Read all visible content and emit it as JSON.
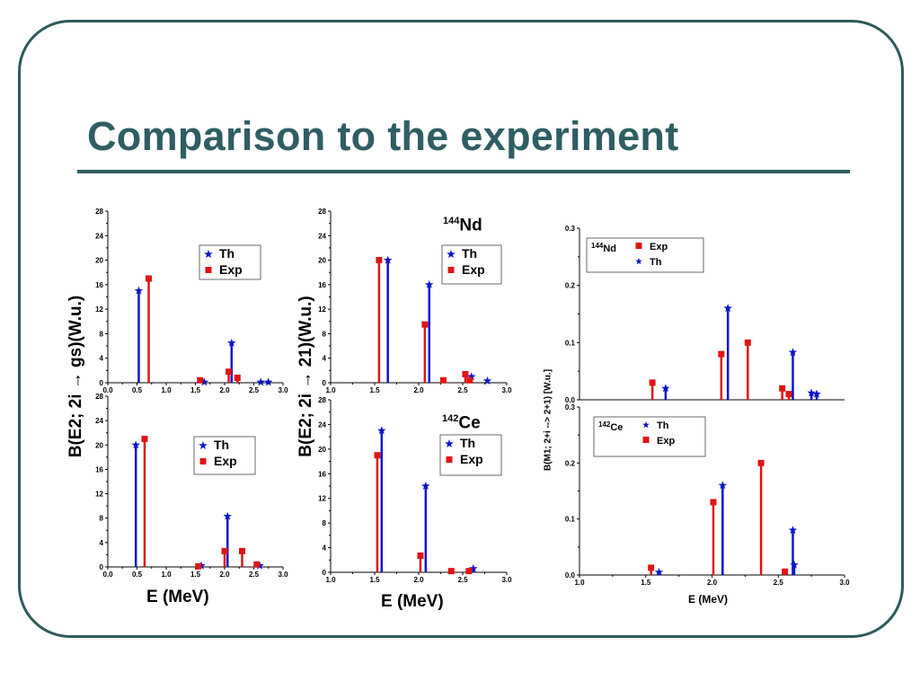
{
  "slide": {
    "title": "Comparison to the experiment",
    "ylabel_left": "B(E2; 2i → gs)(W.u.)",
    "ylabel_mid": "B(E2; 2i → 21)(W.u.)",
    "ylabel_right": "B(M1; 2+i --> 2+1) [W.u.]",
    "xlabel_left": "E (MeV)",
    "xlabel_mid": "E (MeV)",
    "xlabel_right": "E (MeV)",
    "nucleus_nd_mass": "144",
    "nucleus_nd": "Nd",
    "nucleus_ce_mass": "142",
    "nucleus_ce": "Ce",
    "accent_color": "#2e5e63",
    "th_color": "#0d16c8",
    "exp_color": "#e01414"
  },
  "chart_data": [
    {
      "id": "left-top",
      "type": "bar",
      "xlim": [
        0.0,
        3.0
      ],
      "ylim": [
        0,
        28
      ],
      "xticks": [
        "0.0",
        "0.5",
        "1.0",
        "1.5",
        "2.0",
        "2.5",
        "3.0"
      ],
      "yticks": [
        "0",
        "4",
        "8",
        "12",
        "16",
        "20",
        "24",
        "28"
      ],
      "legend": {
        "th": "Th",
        "exp": "Exp"
      },
      "series": [
        {
          "name": "Th",
          "x": [
            0.53,
            1.65,
            2.12,
            2.62,
            2.75
          ],
          "y": [
            15,
            0.1,
            6.5,
            0.1,
            0.1
          ]
        },
        {
          "name": "Exp",
          "x": [
            0.7,
            1.58,
            2.07,
            2.22
          ],
          "y": [
            17,
            0.4,
            1.8,
            0.8
          ]
        }
      ]
    },
    {
      "id": "left-bottom",
      "type": "bar",
      "xlim": [
        0.0,
        3.0
      ],
      "ylim": [
        0,
        28
      ],
      "xticks": [
        "0.0",
        "0.5",
        "1.0",
        "1.5",
        "2.0",
        "2.5",
        "3.0"
      ],
      "yticks": [
        "0",
        "4",
        "8",
        "12",
        "16",
        "20",
        "24",
        "28"
      ],
      "legend": {
        "th": "Th",
        "exp": "Exp"
      },
      "series": [
        {
          "name": "Th",
          "x": [
            0.48,
            1.6,
            2.05,
            2.6
          ],
          "y": [
            20,
            0.2,
            8.3,
            0.2
          ]
        },
        {
          "name": "Exp",
          "x": [
            0.63,
            1.55,
            2.0,
            2.3,
            2.55
          ],
          "y": [
            21,
            0.1,
            2.6,
            2.6,
            0.4
          ]
        }
      ]
    },
    {
      "id": "mid-top",
      "type": "bar",
      "xlim": [
        1.0,
        3.0
      ],
      "ylim": [
        0,
        28
      ],
      "xticks": [
        "1.0",
        "1.5",
        "2.0",
        "2.5",
        "3.0"
      ],
      "yticks": [
        "0",
        "4",
        "8",
        "12",
        "16",
        "20",
        "24",
        "28"
      ],
      "legend": {
        "th": "Th",
        "exp": "Exp"
      },
      "series": [
        {
          "name": "Th",
          "x": [
            1.65,
            2.12,
            2.6,
            2.78
          ],
          "y": [
            20,
            16,
            1.0,
            0.3
          ]
        },
        {
          "name": "Exp",
          "x": [
            1.55,
            2.07,
            2.28,
            2.53,
            2.58
          ],
          "y": [
            20,
            9.5,
            0.4,
            1.4,
            0.4
          ]
        }
      ]
    },
    {
      "id": "mid-bottom",
      "type": "bar",
      "xlim": [
        1.0,
        3.0
      ],
      "ylim": [
        0,
        28
      ],
      "xticks": [
        "1.0",
        "1.5",
        "2.0",
        "2.5",
        "3.0"
      ],
      "yticks": [
        "0",
        "4",
        "8",
        "12",
        "16",
        "20",
        "24",
        "28"
      ],
      "legend": {
        "th": "Th",
        "exp": "Exp"
      },
      "series": [
        {
          "name": "Th",
          "x": [
            1.58,
            2.08,
            2.62
          ],
          "y": [
            23,
            14,
            0.6
          ]
        },
        {
          "name": "Exp",
          "x": [
            1.53,
            2.02,
            2.37,
            2.57
          ],
          "y": [
            19,
            2.7,
            0.2,
            0.2
          ]
        }
      ]
    },
    {
      "id": "right-top",
      "type": "bar",
      "xlim": [
        1.0,
        3.0
      ],
      "ylim": [
        0,
        0.3
      ],
      "xticks": [],
      "yticks": [
        "0.0",
        "0.1",
        "0.2",
        "0.3"
      ],
      "legend": {
        "th": "Th",
        "exp": "Exp"
      },
      "series": [
        {
          "name": "Exp",
          "x": [
            1.55,
            2.07,
            2.27,
            2.53,
            2.58
          ],
          "y": [
            0.03,
            0.08,
            0.1,
            0.02,
            0.01
          ]
        },
        {
          "name": "Th",
          "x": [
            1.65,
            2.12,
            2.61,
            2.75,
            2.79
          ],
          "y": [
            0.02,
            0.16,
            0.083,
            0.012,
            0.01
          ]
        }
      ]
    },
    {
      "id": "right-bottom",
      "type": "bar",
      "xlim": [
        1.0,
        3.0
      ],
      "ylim": [
        0,
        0.3
      ],
      "xticks": [
        "1.0",
        "1.5",
        "2.0",
        "2.5",
        "3.0"
      ],
      "yticks": [
        "0.0",
        "0.1",
        "0.2",
        "0.3"
      ],
      "legend": {
        "th": "Th",
        "exp": "Exp"
      },
      "series": [
        {
          "name": "Th",
          "x": [
            1.6,
            2.08,
            2.61,
            2.62
          ],
          "y": [
            0.005,
            0.16,
            0.08,
            0.018
          ]
        },
        {
          "name": "Exp",
          "x": [
            1.54,
            2.01,
            2.37,
            2.55
          ],
          "y": [
            0.013,
            0.13,
            0.2,
            0.006
          ]
        }
      ]
    }
  ]
}
